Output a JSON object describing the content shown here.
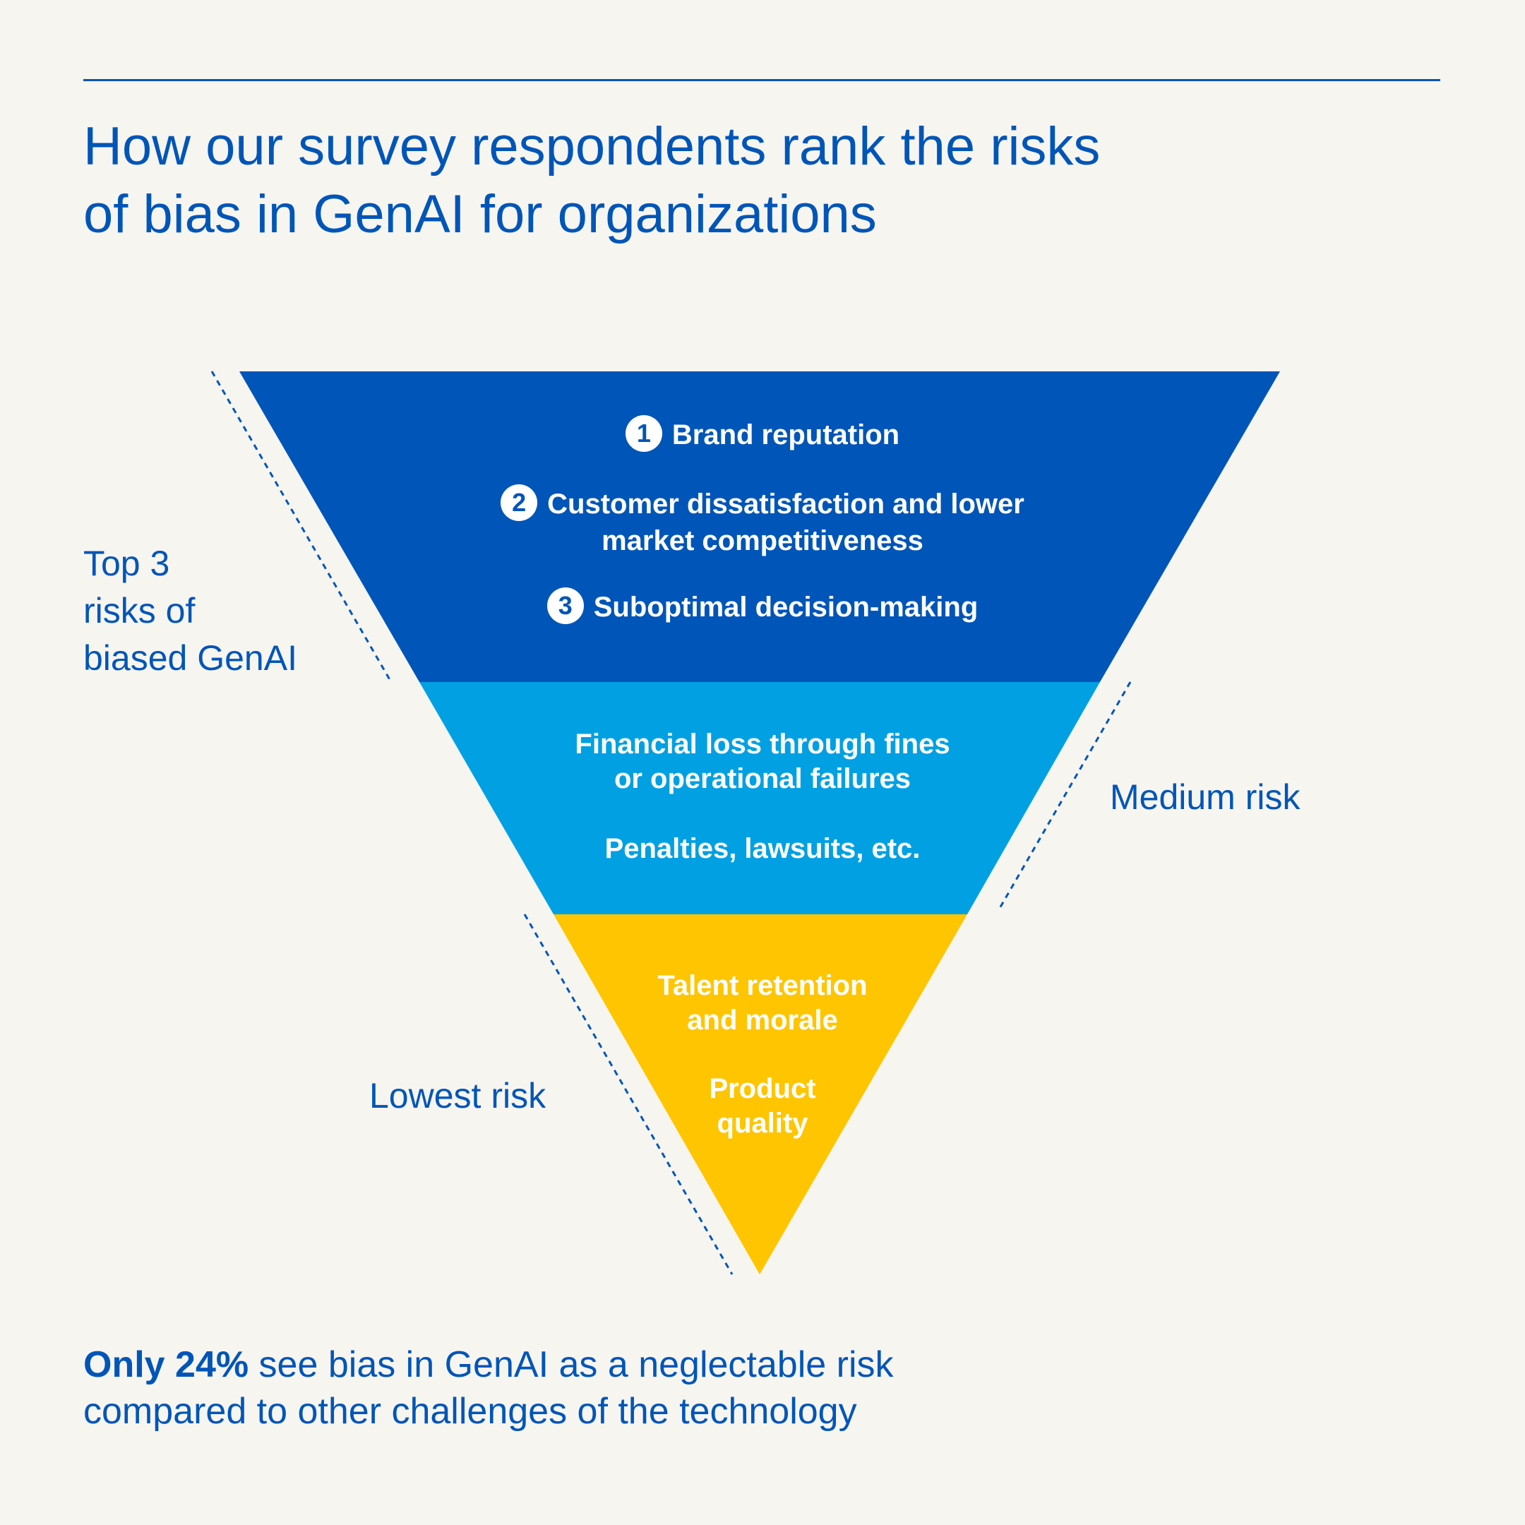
{
  "title_lines": [
    "How our survey respondents rank the risks",
    "of bias in GenAI for organizations"
  ],
  "colors": {
    "primary_blue": "#0055b8",
    "light_blue": "#00a0e3",
    "yellow": "#ffc500",
    "background": "#f6f5f0"
  },
  "funnel": {
    "top": {
      "label_lines": [
        "Top 3",
        "risks of",
        "biased GenAI"
      ],
      "items": [
        {
          "number": "1",
          "lines": [
            "Brand reputation"
          ]
        },
        {
          "number": "2",
          "lines": [
            "Customer dissatisfaction and lower",
            "market competitiveness"
          ]
        },
        {
          "number": "3",
          "lines": [
            "Suboptimal decision-making"
          ]
        }
      ]
    },
    "middle": {
      "label": "Medium risk",
      "items": [
        {
          "lines": [
            "Financial loss through fines",
            "or operational failures"
          ]
        },
        {
          "lines": [
            "Penalties, lawsuits, etc."
          ]
        }
      ]
    },
    "bottom": {
      "label": "Lowest risk",
      "items": [
        {
          "lines": [
            "Talent retention",
            "and morale"
          ]
        },
        {
          "lines": [
            "Product",
            "quality"
          ]
        }
      ]
    }
  },
  "footnote": {
    "highlight": "Only 24%",
    "rest_line1": " see bias in GenAI as a neglectable risk",
    "line2": "compared to other challenges of the technology"
  }
}
